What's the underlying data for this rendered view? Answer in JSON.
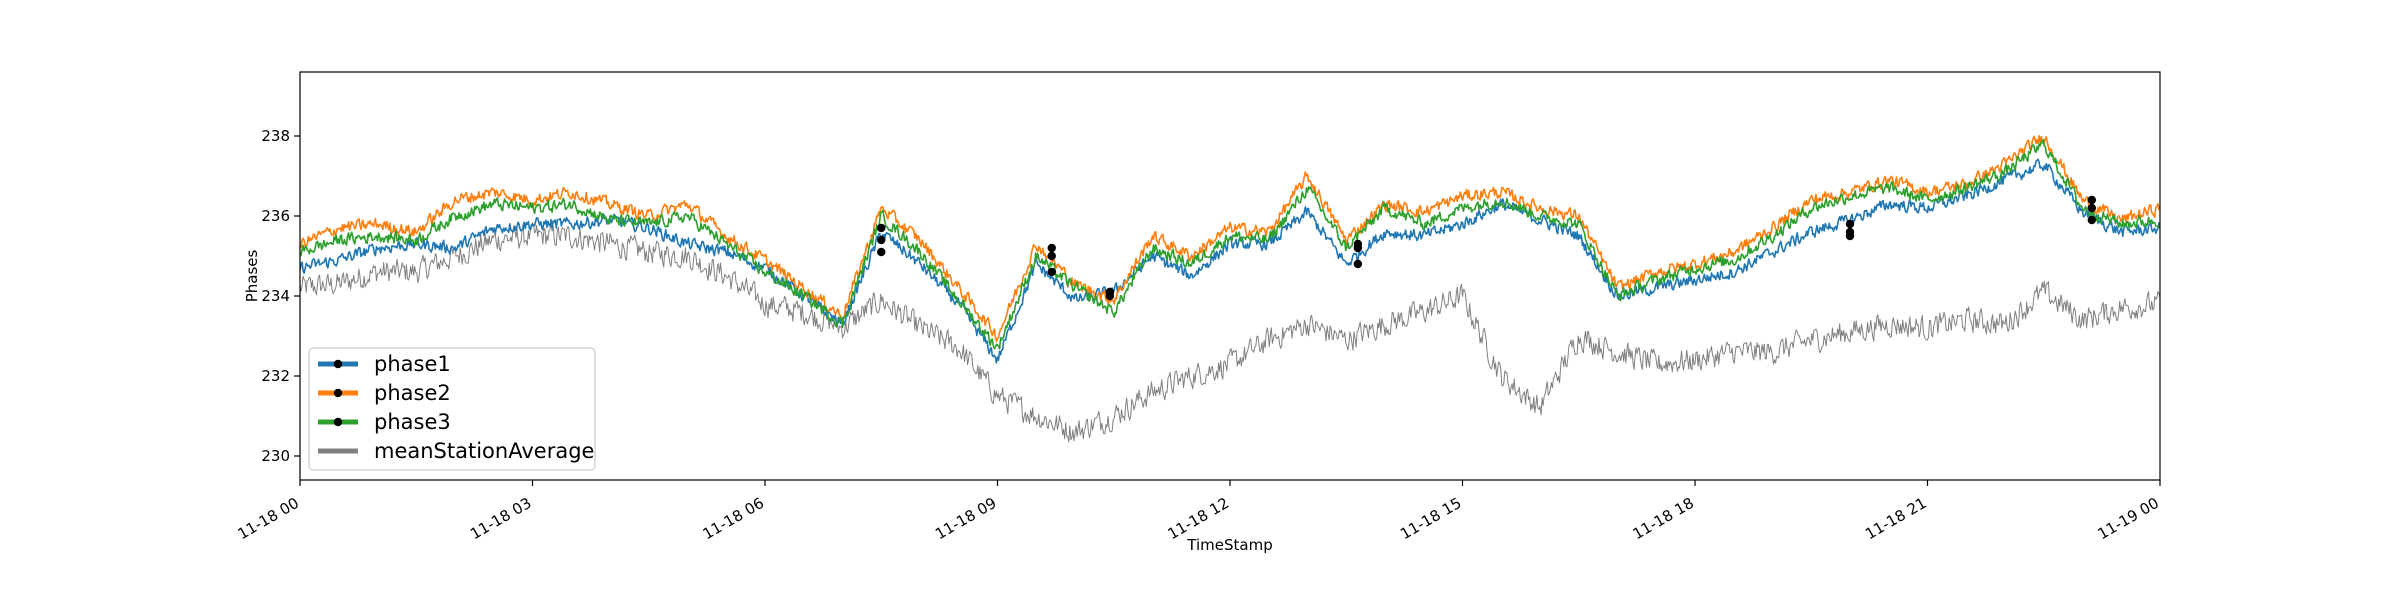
{
  "chart_data": {
    "type": "line",
    "title": "",
    "xlabel": "TimeStamp",
    "ylabel": "Phases",
    "xlim": [
      "11-18 00:00",
      "11-19 00:00"
    ],
    "ylim": [
      229.4,
      239.6
    ],
    "x_ticks": [
      "11-18 00",
      "11-18 03",
      "11-18 06",
      "11-18 09",
      "11-18 12",
      "11-18 15",
      "11-18 18",
      "11-18 21",
      "11-19 00"
    ],
    "y_ticks": [
      230,
      232,
      234,
      236,
      238
    ],
    "grid": false,
    "legend_position": "lower-left",
    "x_hours": [
      0,
      0.5,
      1,
      1.5,
      2,
      2.5,
      3,
      3.5,
      4,
      4.5,
      5,
      5.5,
      6,
      6.5,
      7,
      7.5,
      8,
      8.5,
      9,
      9.5,
      10,
      10.5,
      11,
      11.5,
      12,
      12.5,
      13,
      13.5,
      14,
      14.5,
      15,
      15.5,
      16,
      16.5,
      17,
      17.5,
      18,
      18.5,
      19,
      19.5,
      20,
      20.5,
      21,
      21.5,
      22,
      22.5,
      23,
      23.5,
      24
    ],
    "series": [
      {
        "name": "phase1",
        "color": "#1f77b4",
        "marker": "circle",
        "values": [
          234.7,
          234.9,
          235.2,
          235.3,
          235.2,
          235.7,
          235.8,
          235.8,
          235.9,
          235.7,
          235.3,
          235.1,
          234.7,
          234.0,
          233.3,
          235.6,
          234.8,
          233.8,
          232.4,
          234.8,
          233.9,
          234.1,
          235.0,
          234.5,
          235.3,
          235.3,
          236.1,
          234.8,
          235.6,
          235.5,
          235.8,
          236.3,
          235.9,
          235.5,
          234.0,
          234.2,
          234.4,
          234.6,
          235.1,
          235.6,
          235.9,
          236.3,
          236.2,
          236.5,
          236.9,
          237.3,
          236.1,
          235.6,
          235.7
        ]
      },
      {
        "name": "phase2",
        "color": "#ff7f0e",
        "marker": "circle",
        "values": [
          235.3,
          235.7,
          235.8,
          235.6,
          236.4,
          236.6,
          236.4,
          236.6,
          236.3,
          236.0,
          236.3,
          235.5,
          234.9,
          234.2,
          233.5,
          236.2,
          235.4,
          234.2,
          233.0,
          235.3,
          234.3,
          233.9,
          235.5,
          235.0,
          235.7,
          235.6,
          237.0,
          235.4,
          236.3,
          236.1,
          236.5,
          236.6,
          236.2,
          236.0,
          234.2,
          234.6,
          234.8,
          235.1,
          235.7,
          236.4,
          236.6,
          236.9,
          236.6,
          236.8,
          237.3,
          238.0,
          236.4,
          235.9,
          236.2
        ]
      },
      {
        "name": "phase3",
        "color": "#2ca02c",
        "marker": "circle",
        "values": [
          235.1,
          235.4,
          235.5,
          235.4,
          236.0,
          236.3,
          236.2,
          236.3,
          235.9,
          235.8,
          236.0,
          235.3,
          234.6,
          234.0,
          233.3,
          236.0,
          235.1,
          233.9,
          232.7,
          235.0,
          234.2,
          233.6,
          235.2,
          234.8,
          235.5,
          235.4,
          236.7,
          235.2,
          236.2,
          235.8,
          236.2,
          236.4,
          236.0,
          235.8,
          234.0,
          234.4,
          234.7,
          234.9,
          235.5,
          236.2,
          236.5,
          236.7,
          236.4,
          236.7,
          237.1,
          237.8,
          236.2,
          235.8,
          235.9
        ]
      },
      {
        "name": "meanStationAverage",
        "color": "#808080",
        "marker": "none",
        "values": [
          234.2,
          234.3,
          234.6,
          234.6,
          235.0,
          235.4,
          235.5,
          235.5,
          235.3,
          235.1,
          235.0,
          234.5,
          233.8,
          233.6,
          233.2,
          233.9,
          233.2,
          232.7,
          231.5,
          231.0,
          230.6,
          231.0,
          231.6,
          232.0,
          232.3,
          232.9,
          233.3,
          232.9,
          233.3,
          233.6,
          234.0,
          232.0,
          231.2,
          233.0,
          232.6,
          232.3,
          232.4,
          232.6,
          232.6,
          232.9,
          233.1,
          233.3,
          233.2,
          233.4,
          233.3,
          234.1,
          233.4,
          233.7,
          233.8
        ]
      }
    ],
    "marker_hours": [
      7.5,
      9.7,
      10.45,
      13.65,
      20.0,
      23.12
    ],
    "marker_values": [
      [
        235.1,
        234.6,
        234.1,
        234.8,
        235.5,
        235.9
      ],
      [
        235.7,
        235.2,
        234.1,
        235.3,
        235.8,
        236.4
      ],
      [
        235.4,
        235.0,
        234.0,
        235.2,
        235.6,
        236.2
      ]
    ]
  }
}
